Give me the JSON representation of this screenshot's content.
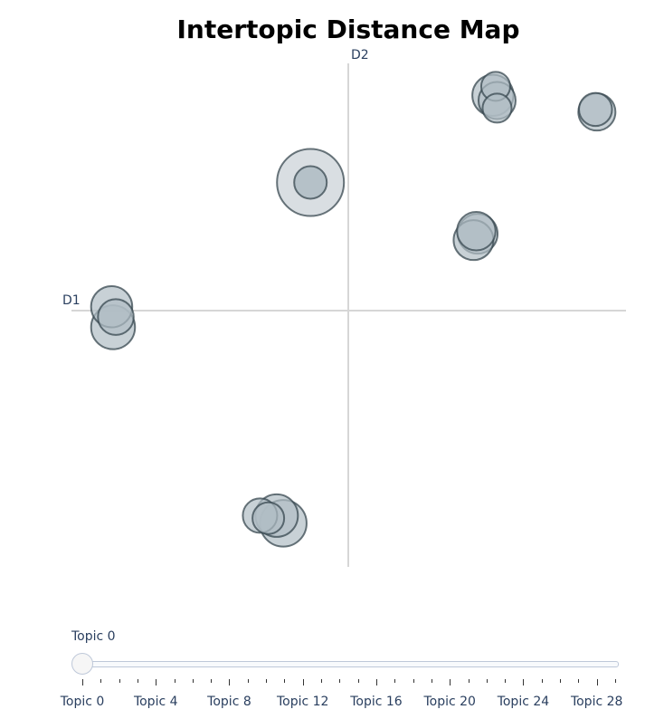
{
  "chart_data": {
    "type": "scatter",
    "title": "Intertopic Distance Map",
    "xlabel": "D1",
    "ylabel": "D2",
    "xlim": [
      -10,
      10
    ],
    "ylim": [
      -10,
      10
    ],
    "grid": false,
    "marker_fill": "#b0bec5",
    "marker_line": "#37474f",
    "highlight_fill": "#d9dee2",
    "points": [
      {
        "topic": 0,
        "x": -1.38,
        "y": 5.0,
        "size": 4.0
      },
      {
        "topic": 1,
        "x": 4.65,
        "y": 3.0,
        "size": 2.0
      },
      {
        "topic": 2,
        "x": 4.5,
        "y": 2.75,
        "size": 2.0
      },
      {
        "topic": 3,
        "x": 4.6,
        "y": 3.1,
        "size": 1.9
      },
      {
        "topic": 4,
        "x": -8.5,
        "y": -0.65,
        "size": 2.3
      },
      {
        "topic": 5,
        "x": -8.55,
        "y": 0.15,
        "size": 2.1
      },
      {
        "topic": 6,
        "x": -8.4,
        "y": -0.25,
        "size": 1.7
      },
      {
        "topic": 7,
        "x": -2.36,
        "y": -8.3,
        "size": 2.5
      },
      {
        "topic": 8,
        "x": -3.2,
        "y": -8.0,
        "size": 1.6
      },
      {
        "topic": 9,
        "x": -2.6,
        "y": -8.0,
        "size": 2.2
      },
      {
        "topic": 10,
        "x": -2.9,
        "y": -8.1,
        "size": 1.4
      },
      {
        "topic": 11,
        "x": 5.2,
        "y": 8.4,
        "size": 2.1
      },
      {
        "topic": 12,
        "x": 5.35,
        "y": 8.2,
        "size": 1.8
      },
      {
        "topic": 13,
        "x": 5.3,
        "y": 8.75,
        "size": 1.2
      },
      {
        "topic": 14,
        "x": 5.35,
        "y": 7.9,
        "size": 1.2
      },
      {
        "topic": 15,
        "x": 8.95,
        "y": 7.75,
        "size": 1.8
      },
      {
        "topic": 16,
        "x": 8.9,
        "y": 7.85,
        "size": 1.5
      }
    ],
    "selected_topic": 0,
    "slider": {
      "current_label": "Topic 0",
      "tick_labels": [
        "Topic 0",
        "Topic 4",
        "Topic 8",
        "Topic 12",
        "Topic 16",
        "Topic 20",
        "Topic 24",
        "Topic 28"
      ],
      "min": 0,
      "max": 29,
      "value": 0
    }
  }
}
